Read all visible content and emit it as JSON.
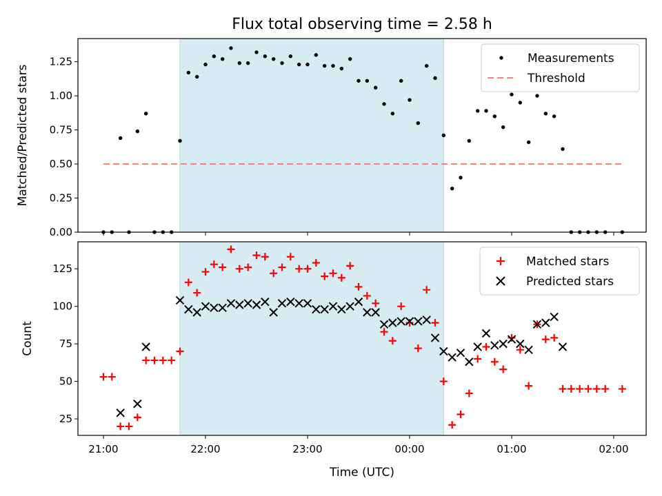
{
  "chart_data": [
    {
      "type": "scatter",
      "panel": "top",
      "title": "Flux total observing time = 2.58 h",
      "xlabel": "",
      "ylabel": "Matched/Predicted stars",
      "ylim": [
        0.0,
        1.42
      ],
      "yticks": [
        0.0,
        0.25,
        0.5,
        0.75,
        1.0,
        1.25
      ],
      "ytick_labels": [
        "0.00",
        "0.25",
        "0.50",
        "0.75",
        "1.00",
        "1.25"
      ],
      "legend_position": "top-right",
      "shaded_interval": {
        "start": "21:45",
        "end": "00:20",
        "color": "#add8e6"
      },
      "series": [
        {
          "name": "Measurements",
          "marker": "dot",
          "color": "#000000",
          "x": [
            "21:00",
            "21:05",
            "21:10",
            "21:15",
            "21:20",
            "21:25",
            "21:30",
            "21:35",
            "21:40",
            "21:45",
            "21:50",
            "21:55",
            "22:00",
            "22:05",
            "22:10",
            "22:15",
            "22:20",
            "22:25",
            "22:30",
            "22:35",
            "22:40",
            "22:45",
            "22:50",
            "22:55",
            "23:00",
            "23:05",
            "23:10",
            "23:15",
            "23:20",
            "23:25",
            "23:30",
            "23:35",
            "23:40",
            "23:45",
            "23:50",
            "23:55",
            "00:00",
            "00:05",
            "00:10",
            "00:15",
            "00:20",
            "00:25",
            "00:30",
            "00:35",
            "00:40",
            "00:45",
            "00:50",
            "00:55",
            "01:00",
            "01:05",
            "01:10",
            "01:15",
            "01:20",
            "01:25",
            "01:30",
            "01:35",
            "01:40",
            "01:45",
            "01:50",
            "01:55",
            "02:05"
          ],
          "y": [
            0.0,
            0.0,
            0.69,
            0.0,
            0.74,
            0.87,
            0.0,
            0.0,
            0.0,
            0.67,
            1.17,
            1.14,
            1.23,
            1.29,
            1.27,
            1.35,
            1.24,
            1.24,
            1.32,
            1.29,
            1.27,
            1.24,
            1.29,
            1.23,
            1.23,
            1.3,
            1.22,
            1.22,
            1.2,
            1.27,
            1.11,
            1.11,
            1.06,
            0.94,
            0.87,
            1.11,
            0.97,
            0.8,
            1.22,
            1.13,
            0.71,
            0.32,
            0.4,
            0.67,
            0.89,
            0.89,
            0.85,
            0.77,
            1.01,
            0.95,
            0.66,
            1.0,
            0.87,
            0.85,
            0.61,
            0.0,
            0.0,
            0.0,
            0.0,
            0.0,
            0.0
          ]
        },
        {
          "name": "Threshold",
          "marker": "dashed-line",
          "color": "#ff7f7f",
          "x": [
            "21:00",
            "02:05"
          ],
          "y": [
            0.5,
            0.5
          ]
        }
      ]
    },
    {
      "type": "scatter",
      "panel": "bottom",
      "title": "",
      "xlabel": "Time (UTC)",
      "ylabel": "Count",
      "ylim": [
        14,
        143
      ],
      "yticks": [
        25,
        50,
        75,
        100,
        125
      ],
      "ytick_labels": [
        "25",
        "50",
        "75",
        "100",
        "125"
      ],
      "xticks": [
        "21:00",
        "22:00",
        "23:00",
        "00:00",
        "01:00",
        "02:00"
      ],
      "legend_position": "top-right",
      "shaded_interval": {
        "start": "21:45",
        "end": "00:20",
        "color": "#add8e6"
      },
      "series": [
        {
          "name": "Matched stars",
          "marker": "plus",
          "color": "#ff0000",
          "x": [
            "21:00",
            "21:05",
            "21:10",
            "21:15",
            "21:20",
            "21:25",
            "21:30",
            "21:35",
            "21:40",
            "21:45",
            "21:50",
            "21:55",
            "22:00",
            "22:05",
            "22:10",
            "22:15",
            "22:20",
            "22:25",
            "22:30",
            "22:35",
            "22:40",
            "22:45",
            "22:50",
            "22:55",
            "23:00",
            "23:05",
            "23:10",
            "23:15",
            "23:20",
            "23:25",
            "23:30",
            "23:35",
            "23:40",
            "23:45",
            "23:50",
            "23:55",
            "00:00",
            "00:05",
            "00:10",
            "00:15",
            "00:20",
            "00:25",
            "00:30",
            "00:35",
            "00:40",
            "00:45",
            "00:50",
            "00:55",
            "01:00",
            "01:05",
            "01:10",
            "01:15",
            "01:20",
            "01:25",
            "01:30",
            "01:35",
            "01:40",
            "01:45",
            "01:50",
            "01:55",
            "02:05"
          ],
          "y": [
            53,
            53,
            20,
            20,
            26,
            64,
            64,
            64,
            64,
            70,
            116,
            109,
            123,
            128,
            126,
            138,
            125,
            126,
            134,
            133,
            122,
            126,
            133,
            125,
            125,
            129,
            120,
            122,
            119,
            127,
            113,
            107,
            102,
            83,
            77,
            100,
            89,
            72,
            111,
            89,
            50,
            21,
            28,
            42,
            65,
            73,
            63,
            58,
            79,
            71,
            47,
            88,
            78,
            79,
            45,
            45,
            45,
            45,
            45,
            45,
            45
          ]
        },
        {
          "name": "Predicted stars",
          "marker": "x",
          "color": "#000000",
          "x": [
            "21:10",
            "21:20",
            "21:25",
            "21:45",
            "21:50",
            "21:55",
            "22:00",
            "22:05",
            "22:10",
            "22:15",
            "22:20",
            "22:25",
            "22:30",
            "22:35",
            "22:40",
            "22:45",
            "22:50",
            "22:55",
            "23:00",
            "23:05",
            "23:10",
            "23:15",
            "23:20",
            "23:25",
            "23:30",
            "23:35",
            "23:40",
            "23:45",
            "23:50",
            "23:55",
            "00:00",
            "00:05",
            "00:10",
            "00:15",
            "00:20",
            "00:25",
            "00:30",
            "00:35",
            "00:40",
            "00:45",
            "00:50",
            "00:55",
            "01:00",
            "01:05",
            "01:10",
            "01:15",
            "01:20",
            "01:25",
            "01:30"
          ],
          "y": [
            29,
            35,
            73,
            104,
            98,
            96,
            100,
            99,
            99,
            102,
            101,
            102,
            101,
            103,
            96,
            102,
            103,
            102,
            102,
            98,
            98,
            100,
            98,
            100,
            103,
            96,
            96,
            88,
            89,
            90,
            90,
            90,
            91,
            79,
            70,
            66,
            69,
            63,
            73,
            82,
            74,
            75,
            78,
            75,
            71,
            88,
            89,
            93,
            73
          ]
        }
      ]
    }
  ]
}
